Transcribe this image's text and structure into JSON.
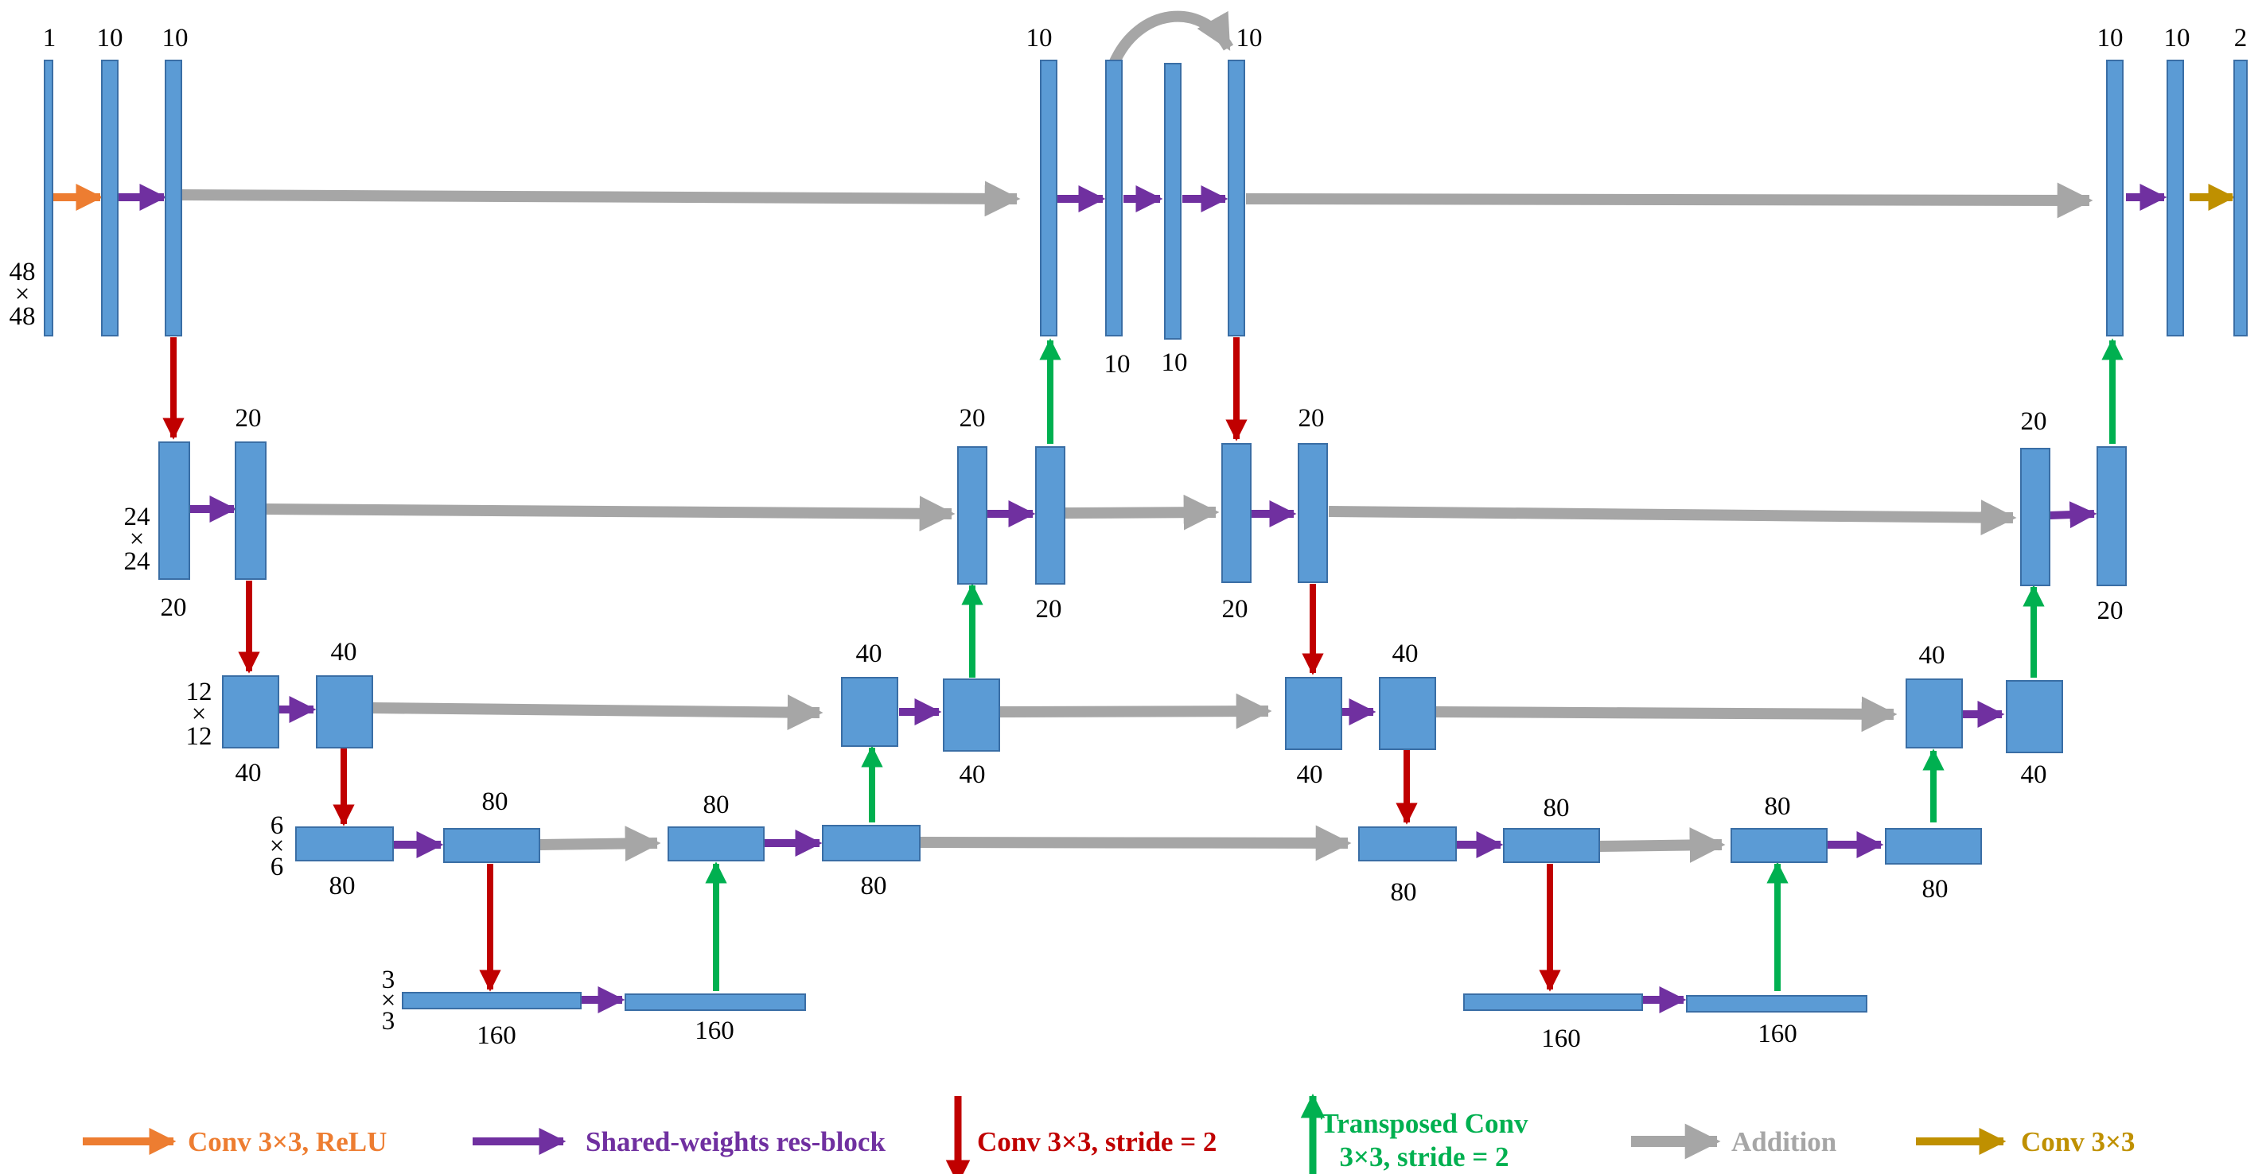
{
  "colors": {
    "block_fill": "#5b9bd5",
    "block_stroke": "#3a6ea5",
    "conv_relu": "#ed7d31",
    "res_block": "#7030a0",
    "downsample": "#c00000",
    "upsample": "#00b050",
    "addition": "#a6a6a6",
    "conv_out": "#bf9000"
  },
  "channel_labels": {
    "l1_in": "1",
    "l1_a": "10",
    "l1_b": "10",
    "l1_m1": "10",
    "l1_m2": "10",
    "l1_m3": "10",
    "l1_m4": "10",
    "l1_o1": "10",
    "l1_o2": "10",
    "l1_o3": "2",
    "l2_a": "20",
    "l2_b": "20",
    "l2_c": "20",
    "l2_d": "20",
    "l2_e": "20",
    "l2_f": "20",
    "l2_g": "20",
    "l2_h": "20",
    "l3_a": "40",
    "l3_b": "40",
    "l3_c": "40",
    "l3_d": "40",
    "l3_e": "40",
    "l3_f": "40",
    "l3_g": "40",
    "l3_h": "40",
    "l4_a": "80",
    "l4_b": "80",
    "l4_c": "80",
    "l4_d": "80",
    "l4_e": "80",
    "l4_f": "80",
    "l4_g": "80",
    "l4_h": "80",
    "l5_a": "160",
    "l5_b": "160",
    "l5_c": "160",
    "l5_d": "160"
  },
  "resolutions": {
    "r48": [
      "48",
      "×",
      "48"
    ],
    "r24": [
      "24",
      "×",
      "24"
    ],
    "r12": [
      "12",
      "×",
      "12"
    ],
    "r6": [
      "6",
      "×",
      "6"
    ],
    "r3": [
      "3",
      "×",
      "3"
    ]
  },
  "legend": {
    "conv_relu": "Conv 3×3, ReLU",
    "res_block": "Shared-weights res-block",
    "downsample": "Conv 3×3, stride = 2",
    "upsample_line1": "Transposed Conv",
    "upsample_line2": "3×3, stride = 2",
    "addition": "Addition",
    "conv_out": "Conv 3×3"
  }
}
